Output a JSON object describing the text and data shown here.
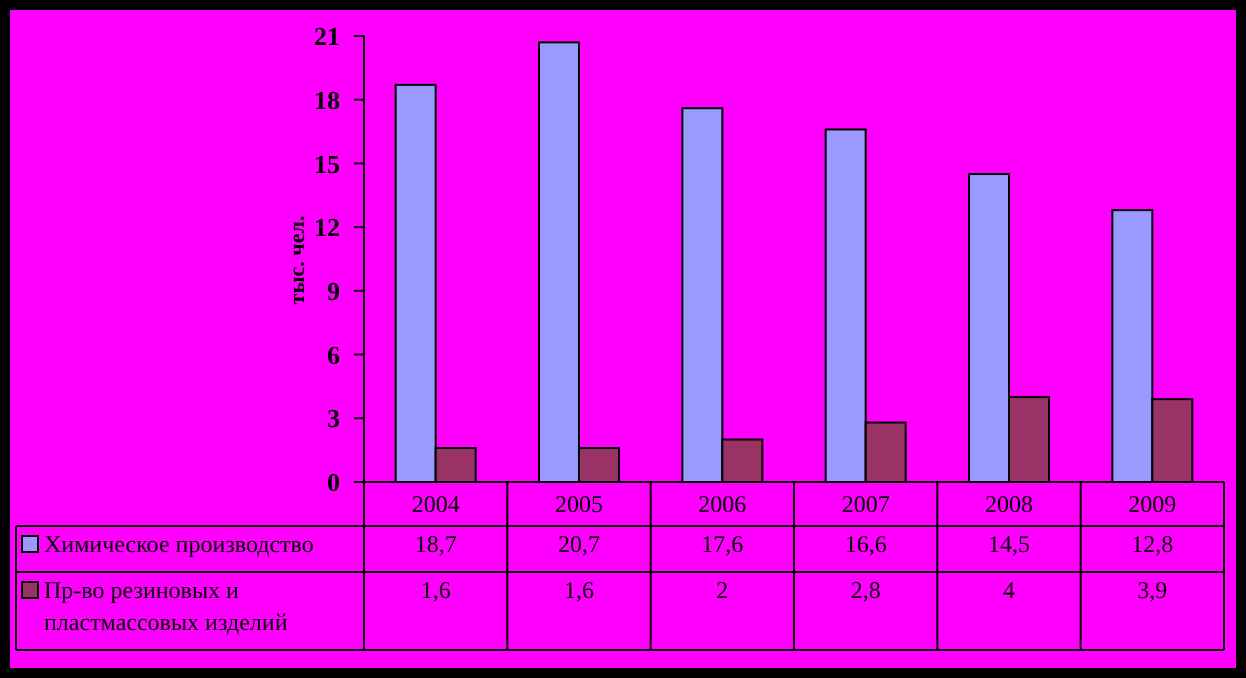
{
  "chart_data": {
    "type": "bar",
    "ylabel": "тыс. чел.",
    "categories": [
      "2004",
      "2005",
      "2006",
      "2007",
      "2008",
      "2009"
    ],
    "series": [
      {
        "name": "Химическое производство",
        "color": "#9999ff",
        "values": [
          18.7,
          20.7,
          17.6,
          16.6,
          14.5,
          12.8
        ],
        "value_labels": [
          "18,7",
          "20,7",
          "17,6",
          "16,6",
          "14,5",
          "12,8"
        ]
      },
      {
        "name": "Пр-во резиновых и пластмассовых изделий",
        "color": "#993366",
        "values": [
          1.6,
          1.6,
          2,
          2.8,
          4,
          3.9
        ],
        "value_labels": [
          "1,6",
          "1,6",
          "2",
          "2,8",
          "4",
          "3,9"
        ]
      }
    ],
    "ylim": [
      0,
      21
    ],
    "yticks": [
      0,
      3,
      6,
      9,
      12,
      15,
      18,
      21
    ],
    "grid": false,
    "legend": "bottom left"
  }
}
